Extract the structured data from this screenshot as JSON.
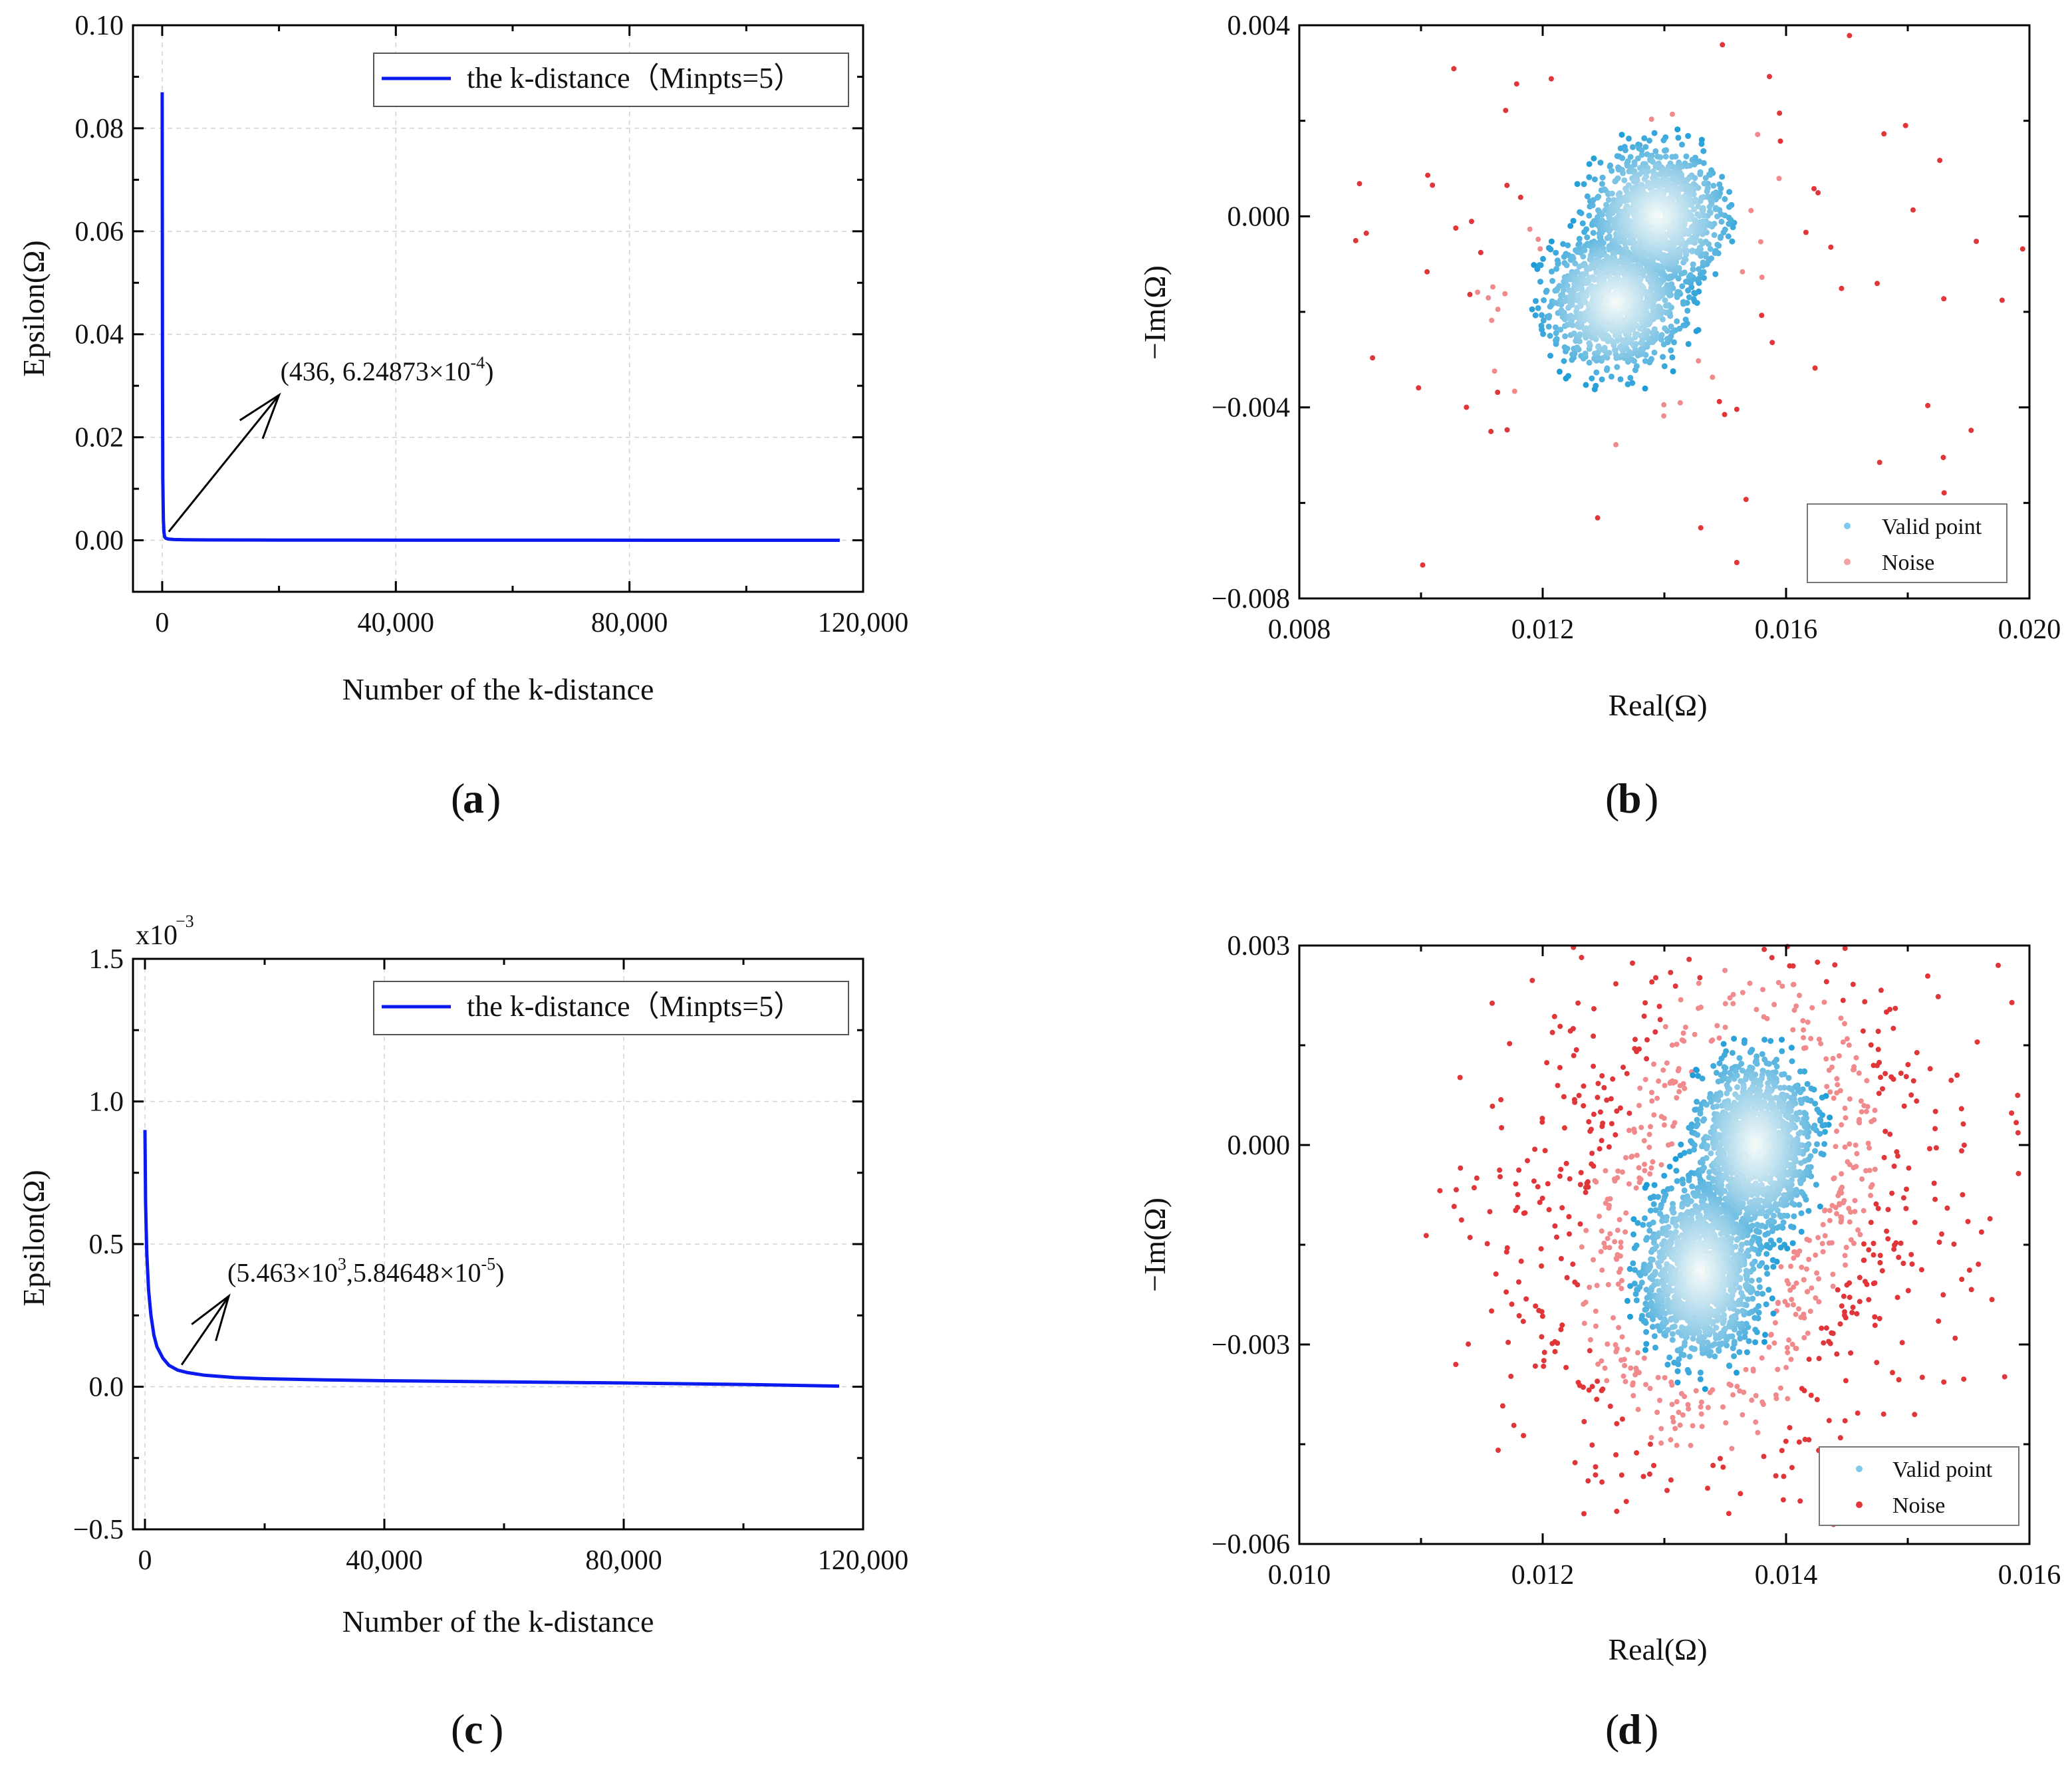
{
  "chart_data": [
    {
      "id": "a",
      "type": "line",
      "panel_label": "a",
      "xlabel": "Number of the k-distance",
      "ylabel": "Epsilon(Ω)",
      "xlim": [
        -5000,
        120000
      ],
      "ylim": [
        -0.01,
        0.1
      ],
      "xticks": [
        0,
        40000,
        80000,
        120000
      ],
      "xtick_labels": [
        "0",
        "40,000",
        "80,000",
        "120,000"
      ],
      "yticks": [
        0.0,
        0.02,
        0.04,
        0.06,
        0.08,
        0.1
      ],
      "ytick_labels": [
        "0.00",
        "0.02",
        "0.04",
        "0.06",
        "0.08",
        "0.10"
      ],
      "multiplier_label": "",
      "legend": "the k-distance（Minpts=5）",
      "series": [
        {
          "name": "the k-distance（Minpts=5）",
          "color": "#0b1bf0",
          "x": [
            0,
            50,
            100,
            200,
            300,
            436,
            600,
            1000,
            2000,
            4000,
            8000,
            20000,
            60000,
            116000
          ],
          "y": [
            0.087,
            0.03,
            0.012,
            0.004,
            0.0015,
            0.000625,
            0.0004,
            0.00025,
            0.00015,
            0.0001,
            7e-05,
            4e-05,
            2e-05,
            0.0
          ]
        }
      ],
      "annotation": {
        "text_main": "(436, 6.24873×10",
        "text_sup": "-4",
        "text_end": ")",
        "point": [
          436,
          0.000625
        ],
        "text_at": [
          20000,
          0.03
        ]
      }
    },
    {
      "id": "b",
      "type": "scatter",
      "panel_label": "b",
      "xlabel": "Real(Ω)",
      "ylabel": "−Im(Ω)",
      "xlim": [
        0.008,
        0.02
      ],
      "ylim": [
        -0.008,
        0.004
      ],
      "xticks": [
        0.008,
        0.012,
        0.016,
        0.02
      ],
      "xtick_labels": [
        "0.008",
        "0.012",
        "0.016",
        "0.020"
      ],
      "yticks": [
        -0.008,
        -0.004,
        0.0,
        0.004
      ],
      "ytick_labels": [
        "−0.008",
        "−0.004",
        "0.000",
        "0.004"
      ],
      "cluster": {
        "centers": [
          [
            0.0139,
            0.0
          ],
          [
            0.0132,
            -0.0018
          ]
        ],
        "spread_x": 0.00095,
        "spread_y": 0.00125,
        "n_valid": 2600,
        "noise_model": "sparse"
      },
      "legend": [
        {
          "label": "Valid point",
          "color": "#1a9bd7"
        },
        {
          "label": "Noise",
          "color": "#e0363a"
        }
      ]
    },
    {
      "id": "c",
      "type": "line",
      "panel_label": "c",
      "xlabel": "Number of the k-distance",
      "ylabel": "Epsilon(Ω)",
      "xlim": [
        -2000,
        120000
      ],
      "ylim": [
        -0.5,
        1.5
      ],
      "xticks": [
        0,
        40000,
        80000,
        120000
      ],
      "xtick_labels": [
        "0",
        "40,000",
        "80,000",
        "120,000"
      ],
      "yticks": [
        -0.5,
        0.0,
        0.5,
        1.0,
        1.5
      ],
      "ytick_labels": [
        "−0.5",
        "0.0",
        "0.5",
        "1.0",
        "1.5"
      ],
      "multiplier_label": "x10",
      "multiplier_exp": "−3",
      "legend": "the k-distance（Minpts=5）",
      "series": [
        {
          "name": "the k-distance（Minpts=5）",
          "color": "#0b1bf0",
          "x": [
            0,
            100,
            300,
            600,
            1000,
            1500,
            2000,
            3000,
            4000,
            5463,
            7000,
            10000,
            15000,
            20000,
            30000,
            40000,
            60000,
            80000,
            100000,
            116000
          ],
          "y": [
            0.9,
            0.65,
            0.47,
            0.34,
            0.25,
            0.18,
            0.14,
            0.1,
            0.075,
            0.058,
            0.05,
            0.04,
            0.032,
            0.028,
            0.024,
            0.021,
            0.017,
            0.013,
            0.008,
            0.002
          ]
        }
      ],
      "annotation": {
        "text_main": "(5.463×10",
        "text_sup1": "3",
        "text_mid": ",5.84648×10",
        "text_sup2": "-5",
        "text_end": ")",
        "point": [
          5463,
          0.058
        ],
        "text_at": [
          14000,
          0.35
        ]
      }
    },
    {
      "id": "d",
      "type": "scatter",
      "panel_label": "d",
      "xlabel": "Real(Ω)",
      "ylabel": "−Im(Ω)",
      "xlim": [
        0.01,
        0.016
      ],
      "ylim": [
        -0.006,
        0.003
      ],
      "xticks": [
        0.01,
        0.012,
        0.014,
        0.016
      ],
      "xtick_labels": [
        "0.010",
        "0.012",
        "0.014",
        "0.016"
      ],
      "yticks": [
        -0.006,
        -0.003,
        0.0,
        0.003
      ],
      "ytick_labels": [
        "−0.006",
        "−0.003",
        "0.000",
        "0.003"
      ],
      "cluster": {
        "centers": [
          [
            0.01375,
            0.0
          ],
          [
            0.0133,
            -0.0019
          ]
        ],
        "spread_x": 0.00042,
        "spread_y": 0.00115,
        "n_valid": 3200,
        "noise_model": "dense"
      },
      "legend": [
        {
          "label": "Valid point",
          "color": "#1a9bd7"
        },
        {
          "label": "Noise",
          "color": "#e0363a"
        }
      ]
    }
  ]
}
